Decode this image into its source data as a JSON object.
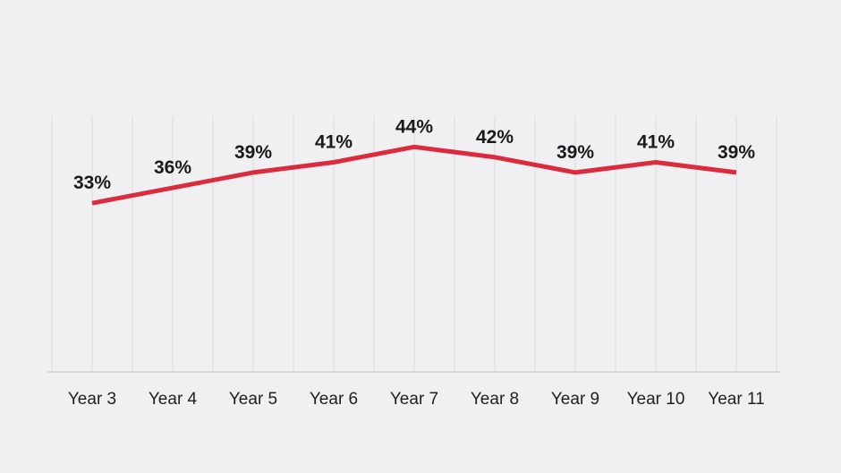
{
  "chart_data": {
    "type": "line",
    "title": "",
    "xlabel": "",
    "ylabel": "",
    "categories": [
      "Year 3",
      "Year 4",
      "Year 5",
      "Year 6",
      "Year 7",
      "Year 8",
      "Year 9",
      "Year 10",
      "Year 11"
    ],
    "values": [
      33,
      36,
      39,
      41,
      44,
      42,
      39,
      41,
      39
    ],
    "value_labels": [
      "33%",
      "36%",
      "39%",
      "41%",
      "44%",
      "42%",
      "39%",
      "41%",
      "39%"
    ],
    "ylim": [
      0,
      50
    ],
    "grid": "vertical-only",
    "gridlines_between_categories": true,
    "legend": "none",
    "y_axis_visible": false,
    "colors": {
      "background": "#f0eff1",
      "gridline": "#e3e2e6",
      "axis_line": "#d9d8dc",
      "series_line": "#dc2b3c",
      "value_label_text": "#1a1a1a",
      "category_label_text": "#212121"
    }
  }
}
